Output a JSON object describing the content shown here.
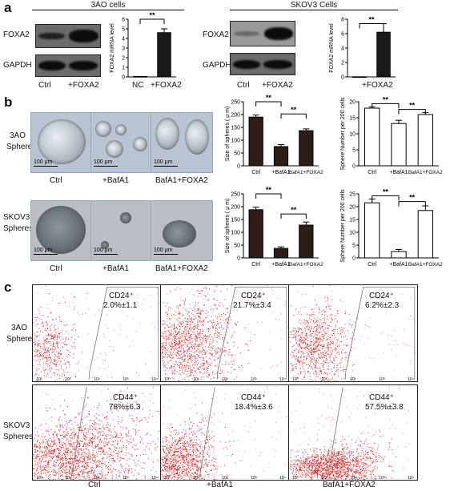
{
  "panels": {
    "a": "a",
    "b": "b",
    "c": "c"
  },
  "section_a": {
    "left_title": "3AO cells",
    "right_title": "SKOV3 Cells",
    "foxa2": "FOXA2",
    "gapdh": "GAPDH",
    "ctrl": "Ctrl",
    "foxa2_lane": "+FOXA2",
    "nc": "NC",
    "ylabel": "FOXA2 mRNA level",
    "sig": "**"
  },
  "section_b": {
    "row1_label_line1": "3AO",
    "row1_label_line2": "Spheres",
    "row2_label_line1": "SKOV3",
    "row2_label_line2": "Spheres",
    "scale": "100 μm",
    "cond_ctrl": "Ctrl",
    "cond_baf": "+BafA1",
    "cond_both": "BafA1+FOXA2",
    "size_ylabel": "Size of spheres ( μ m)",
    "num_ylabel": "Sphere Number per 200 cells",
    "sig": "**"
  },
  "section_c": {
    "row1_label_line1": "3AO",
    "row1_label_line2": "Spheres",
    "row2_label_line1": "SKOV3",
    "row2_label_line2": "Spheres",
    "cd24": "CD24⁺",
    "cd44": "CD44⁺",
    "r1": [
      "2.0%±1.1",
      "21.7%±3.4",
      "6.2%±2.3"
    ],
    "r2": [
      "78%±6.3",
      "18.4%±3.6",
      "57.5%±3.8"
    ],
    "cond": [
      "Ctrl",
      "+BafA1",
      "BafA1+FOXA2"
    ],
    "ticks": [
      "10⁰",
      "10¹",
      "10²",
      "10³",
      "10⁴"
    ]
  },
  "chart_data": [
    {
      "type": "bar",
      "name_ref": "3AO FOXA2 mRNA",
      "categories": [
        "NC",
        "+FOXA2"
      ],
      "values": [
        0.05,
        4.6
      ],
      "errors": [
        0.05,
        0.4
      ],
      "ylim": [
        0,
        6
      ],
      "yticks": [
        0,
        1,
        2,
        3,
        4,
        5,
        6
      ],
      "ylabel": "FOXA2 mRNA level",
      "fill": "#1a1a1a"
    },
    {
      "type": "bar",
      "name_ref": "SKOV3 FOXA2 mRNA",
      "categories": [
        "Ctrl",
        "+FOXA2"
      ],
      "values": [
        0.02,
        6.2
      ],
      "errors": [
        0.02,
        1.2
      ],
      "ylim": [
        0,
        8
      ],
      "yticks": [
        0,
        2,
        4,
        6,
        8
      ],
      "ylabel": "FOXA2 mRNA level",
      "fill": "#1a1a1a"
    },
    {
      "type": "bar",
      "name_ref": "3AO size",
      "categories": [
        "Ctrl",
        "+BafA1",
        "BafA1+FOXA2"
      ],
      "values": [
        190,
        75,
        137
      ],
      "errors": [
        8,
        8,
        7
      ],
      "ylim": [
        0,
        250
      ],
      "yticks": [
        0,
        50,
        100,
        150,
        200,
        250
      ],
      "ylabel": "Size of spheres ( μ m)",
      "fill": "#2e1d17"
    },
    {
      "type": "bar",
      "name_ref": "3AO number",
      "categories": [
        "Ctrl",
        "+BafA1",
        "BafA1+FOXA2"
      ],
      "values": [
        18,
        13.2,
        16
      ],
      "errors": [
        0.4,
        1.0,
        0.6
      ],
      "ylim": [
        0,
        20
      ],
      "yticks": [
        0,
        5,
        10,
        15,
        20
      ],
      "ylabel": "Sphere Number per 200 cells",
      "fill": "#ffffff"
    },
    {
      "type": "bar",
      "name_ref": "SKOV3 size",
      "categories": [
        "Ctrl",
        "+BafA1",
        "BafA1+FOXA2"
      ],
      "values": [
        188,
        37,
        128
      ],
      "errors": [
        10,
        6,
        12
      ],
      "ylim": [
        0,
        250
      ],
      "yticks": [
        0,
        50,
        100,
        150,
        200,
        250
      ],
      "ylabel": "Size of spheres ( μ m)",
      "fill": "#2e1d17"
    },
    {
      "type": "bar",
      "name_ref": "SKOV3 number",
      "categories": [
        "Ctrl",
        "+BafA1",
        "BafA1+FOXA2"
      ],
      "values": [
        21.5,
        2.5,
        18.5
      ],
      "errors": [
        1.5,
        0.8,
        1.8
      ],
      "ylim": [
        0,
        25
      ],
      "yticks": [
        0,
        5,
        10,
        15,
        20,
        25
      ],
      "ylabel": "Sphere Number per 200 cells",
      "fill": "#ffffff"
    }
  ]
}
